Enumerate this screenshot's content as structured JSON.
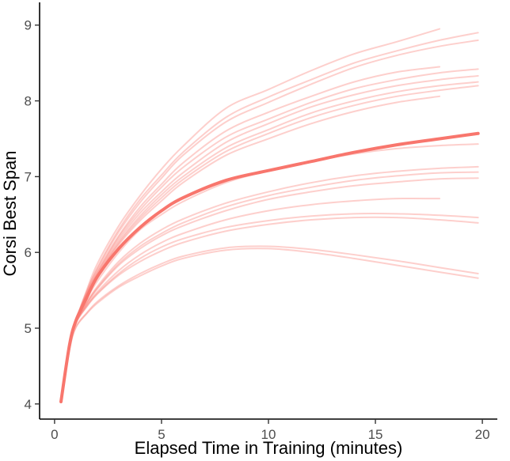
{
  "chart_data": {
    "type": "line",
    "title": "",
    "xlabel": "Elapsed Time in Training (minutes)",
    "ylabel": "Corsi Best Span",
    "xlim": [
      -0.7,
      20.7
    ],
    "ylim": [
      3.8,
      9.3
    ],
    "x_ticks": [
      0,
      5,
      10,
      15,
      20
    ],
    "y_ticks": [
      4,
      5,
      6,
      7,
      8,
      9
    ],
    "grid": false,
    "legend": "none",
    "colors": {
      "individual": "#f8766d",
      "mean": "#f8766d",
      "individual_opacity": 0.35
    },
    "x": [
      0.3,
      0.7,
      1,
      1.5,
      2,
      3,
      4,
      5,
      6,
      8,
      10,
      12,
      14,
      16,
      18,
      19.8
    ],
    "mean_series": {
      "values": [
        4.03,
        4.78,
        5.1,
        5.4,
        5.68,
        6.05,
        6.33,
        6.55,
        6.72,
        6.95,
        7.08,
        7.2,
        7.32,
        7.42,
        7.5,
        7.57
      ]
    },
    "series": [
      {
        "values": [
          4.02,
          4.75,
          5.1,
          5.5,
          5.85,
          6.35,
          6.75,
          7.1,
          7.4,
          7.9,
          8.15,
          8.4,
          8.62,
          8.78,
          8.95,
          null
        ]
      },
      {
        "values": [
          4.02,
          4.75,
          5.1,
          5.48,
          5.8,
          6.3,
          6.7,
          7.02,
          7.32,
          7.78,
          8.05,
          8.28,
          8.5,
          8.66,
          8.8,
          8.9
        ]
      },
      {
        "values": [
          4.02,
          4.75,
          5.1,
          5.47,
          5.78,
          6.27,
          6.66,
          6.98,
          7.28,
          7.72,
          7.98,
          8.22,
          8.44,
          8.6,
          8.72,
          8.8
        ]
      },
      {
        "values": [
          4.02,
          4.75,
          5.1,
          5.45,
          5.75,
          6.22,
          6.6,
          6.9,
          7.18,
          7.6,
          7.85,
          8.06,
          8.25,
          8.38,
          8.45,
          null
        ]
      },
      {
        "values": [
          4.02,
          4.75,
          5.1,
          5.44,
          5.73,
          6.2,
          6.56,
          6.86,
          7.12,
          7.52,
          7.76,
          7.98,
          8.16,
          8.28,
          8.37,
          8.42
        ]
      },
      {
        "values": [
          4.02,
          4.75,
          5.1,
          5.43,
          5.72,
          6.17,
          6.52,
          6.8,
          7.05,
          7.45,
          7.7,
          7.92,
          8.08,
          8.2,
          8.28,
          8.33
        ]
      },
      {
        "values": [
          4.02,
          4.75,
          5.1,
          5.42,
          5.7,
          6.14,
          6.48,
          6.76,
          7.0,
          7.38,
          7.62,
          7.84,
          8.0,
          8.12,
          8.2,
          8.25
        ]
      },
      {
        "values": [
          4.02,
          4.75,
          5.1,
          5.42,
          5.69,
          6.12,
          6.45,
          6.72,
          6.96,
          7.33,
          7.57,
          7.78,
          7.94,
          8.06,
          8.14,
          8.2
        ]
      },
      {
        "values": [
          4.02,
          4.75,
          5.1,
          5.41,
          5.68,
          6.1,
          6.42,
          6.68,
          6.92,
          7.28,
          7.5,
          7.7,
          7.86,
          7.98,
          8.06,
          null
        ]
      },
      {
        "values": [
          4.02,
          4.75,
          5.1,
          5.38,
          5.62,
          6.0,
          6.3,
          6.5,
          6.67,
          6.92,
          7.08,
          7.2,
          7.3,
          7.37,
          7.41,
          7.43
        ]
      },
      {
        "values": [
          4.02,
          4.75,
          5.08,
          5.34,
          5.55,
          5.88,
          6.12,
          6.3,
          6.44,
          6.65,
          6.8,
          6.92,
          7.01,
          7.07,
          7.11,
          7.13
        ]
      },
      {
        "values": [
          4.02,
          4.75,
          5.08,
          5.33,
          5.53,
          5.85,
          6.08,
          6.25,
          6.39,
          6.6,
          6.75,
          6.86,
          6.95,
          7.01,
          7.05,
          7.06
        ]
      },
      {
        "values": [
          4.02,
          4.75,
          5.08,
          5.32,
          5.52,
          5.83,
          6.05,
          6.22,
          6.35,
          6.55,
          6.7,
          6.8,
          6.88,
          6.93,
          6.97,
          6.98
        ]
      },
      {
        "values": [
          4.02,
          4.75,
          5.07,
          5.3,
          5.48,
          5.76,
          5.97,
          6.13,
          6.25,
          6.43,
          6.55,
          6.63,
          6.68,
          6.71,
          6.71,
          null
        ]
      },
      {
        "values": [
          4.02,
          4.75,
          5.07,
          5.29,
          5.46,
          5.72,
          5.92,
          6.07,
          6.18,
          6.33,
          6.42,
          6.48,
          6.51,
          6.51,
          6.49,
          6.46
        ]
      },
      {
        "values": [
          4.02,
          4.75,
          5.07,
          5.28,
          5.45,
          5.7,
          5.88,
          6.02,
          6.13,
          6.28,
          6.37,
          6.43,
          6.46,
          6.46,
          6.43,
          6.39
        ]
      },
      {
        "values": [
          4.02,
          4.72,
          5.02,
          5.2,
          5.35,
          5.56,
          5.72,
          5.85,
          5.95,
          6.06,
          6.08,
          6.04,
          5.97,
          5.89,
          5.8,
          5.72
        ]
      },
      {
        "values": [
          4.02,
          4.72,
          5.01,
          5.19,
          5.33,
          5.54,
          5.69,
          5.82,
          5.92,
          6.03,
          6.05,
          6.0,
          5.92,
          5.83,
          5.74,
          5.66
        ]
      }
    ]
  }
}
